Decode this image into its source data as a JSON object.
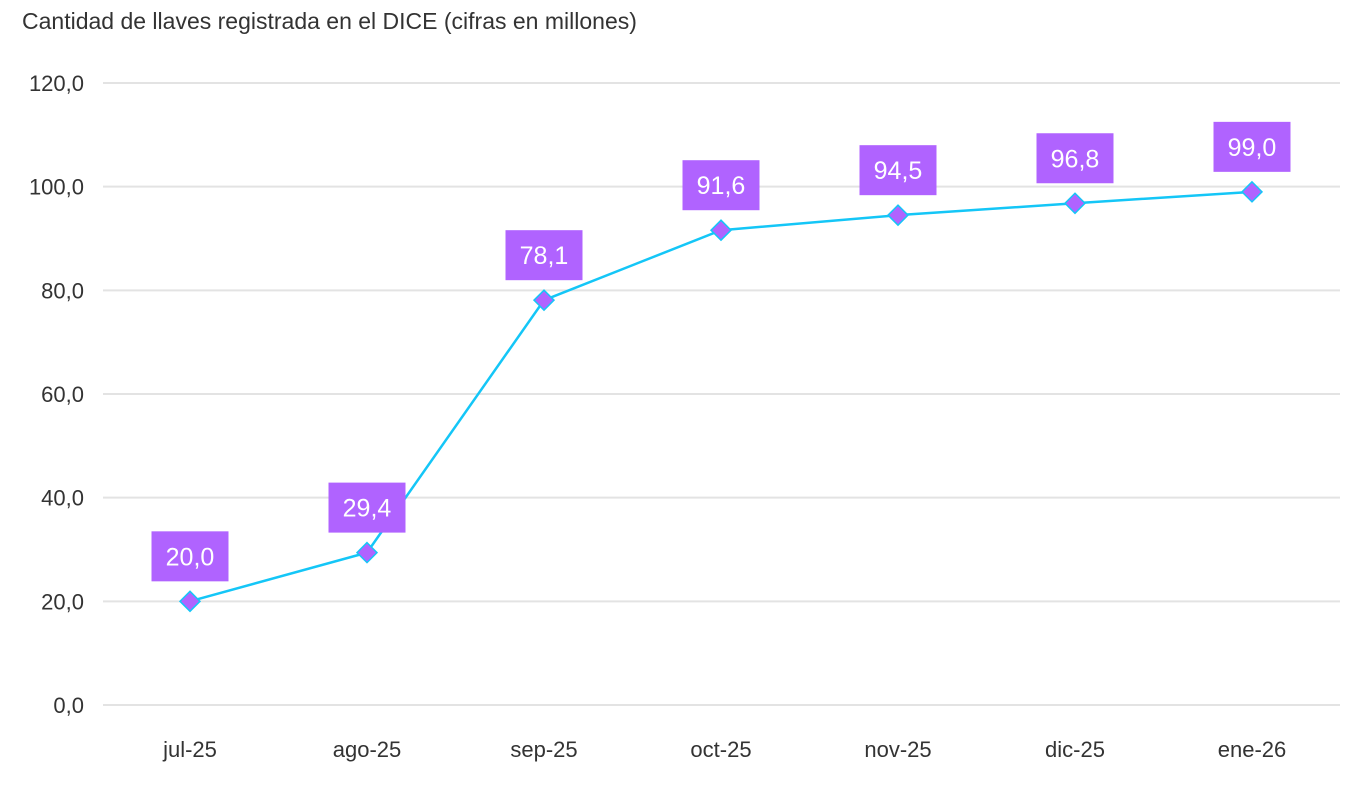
{
  "chart_data": {
    "type": "line",
    "title": "Cantidad de llaves registrada en el DICE (cifras en millones)",
    "categories": [
      "jul-25",
      "ago-25",
      "sep-25",
      "oct-25",
      "nov-25",
      "dic-25",
      "ene-26"
    ],
    "values": [
      20.0,
      29.4,
      78.1,
      91.6,
      94.5,
      96.8,
      99.0
    ],
    "data_labels": [
      "20,0",
      "29,4",
      "78,1",
      "91,6",
      "94,5",
      "96,8",
      "99,0"
    ],
    "yticks": [
      "0,0",
      "20,0",
      "40,0",
      "60,0",
      "80,0",
      "100,0",
      "120,0"
    ],
    "ylim": [
      0,
      120
    ],
    "grid": true,
    "legend": "none",
    "colors": {
      "line": "#14C6F7",
      "marker": "#B063FF",
      "label_bg": "#B063FF",
      "grid": "#E3E3E3"
    }
  }
}
